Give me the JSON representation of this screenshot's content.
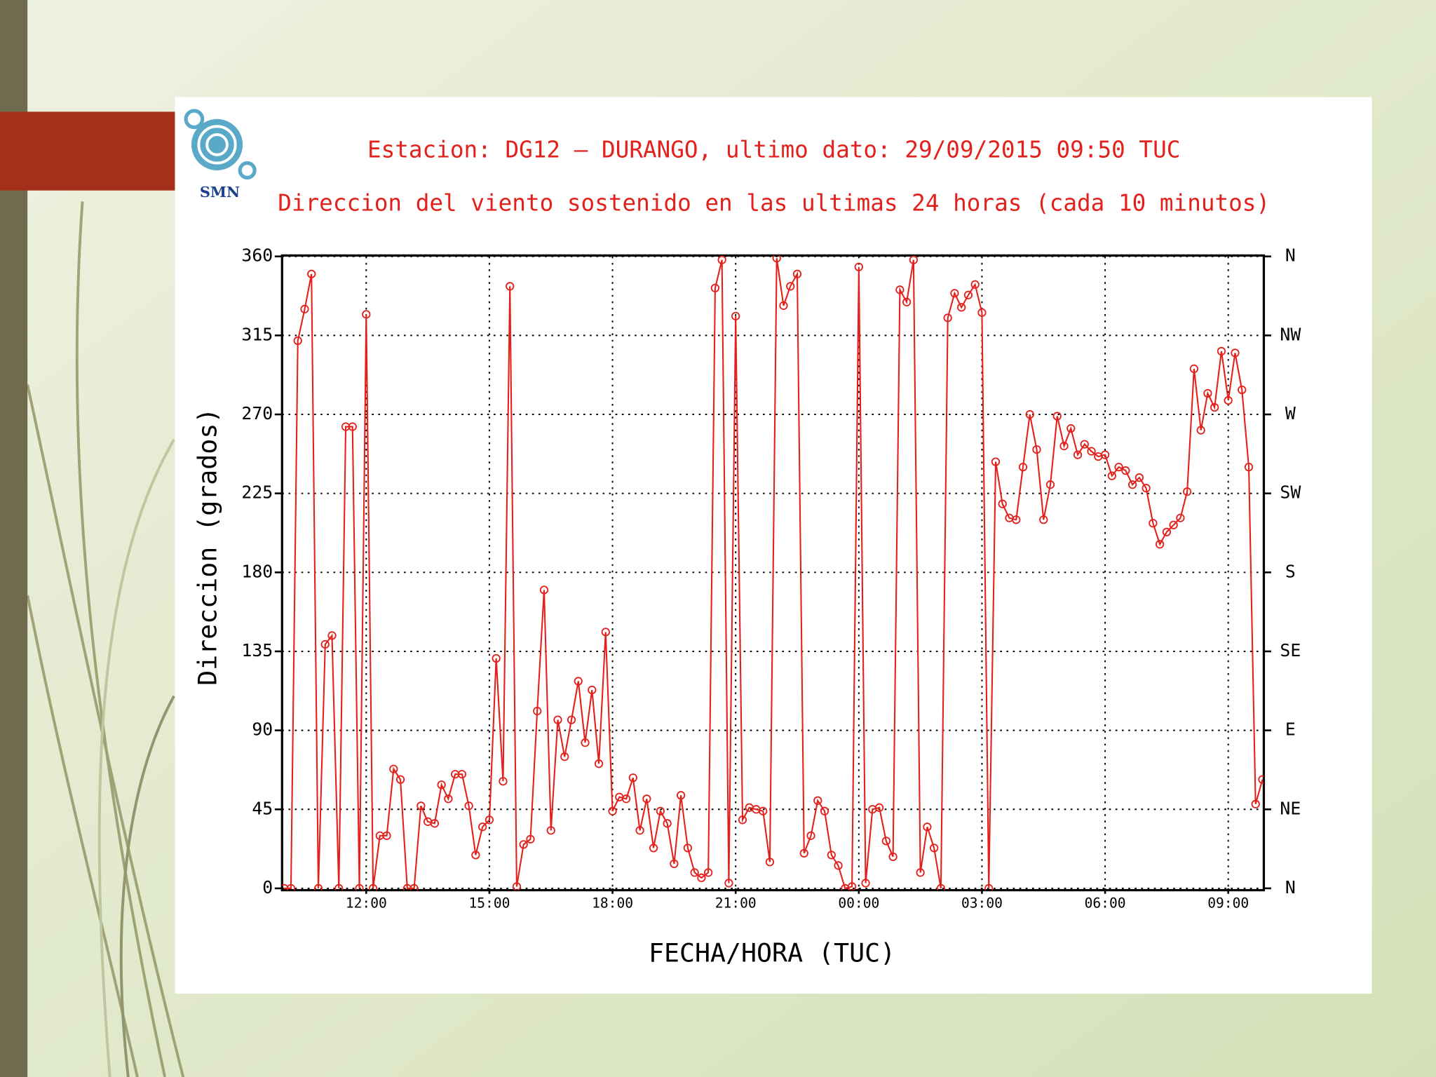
{
  "logo_text": "SMN",
  "chart_data": {
    "type": "line",
    "title": "Estacion: DG12 — DURANGO, ultimo dato: 29/09/2015 09:50 TUC",
    "subtitle": "Direccion del viento sostenido en las ultimas 24 horas (cada 10 minutos)",
    "x_label": "FECHA/HORA (TUC)",
    "y_label": "Direccion (grados)",
    "color": "#e3211c",
    "grid": true,
    "x": [
      600,
      610,
      620,
      630,
      640,
      650,
      660,
      670,
      680,
      690,
      700,
      710,
      720,
      730,
      740,
      750,
      760,
      770,
      780,
      790,
      800,
      810,
      820,
      830,
      840,
      850,
      860,
      870,
      880,
      890,
      900,
      910,
      920,
      930,
      940,
      950,
      960,
      970,
      980,
      990,
      1000,
      1010,
      1020,
      1030,
      1040,
      1050,
      1060,
      1070,
      1080,
      1090,
      1100,
      1110,
      1120,
      1130,
      1140,
      1150,
      1160,
      1170,
      1180,
      1190,
      1200,
      1210,
      1220,
      1230,
      1240,
      1250,
      1260,
      1270,
      1280,
      1290,
      1300,
      1310,
      1320,
      1330,
      1340,
      1350,
      1360,
      1370,
      1380,
      1390,
      1400,
      1410,
      1420,
      1430,
      1440,
      1450,
      1460,
      1470,
      1480,
      1490,
      1500,
      1510,
      1520,
      1530,
      1540,
      1550,
      1560,
      1570,
      1580,
      1590,
      1600,
      1610,
      1620,
      1630,
      1640,
      1650,
      1660,
      1670,
      1680,
      1690,
      1700,
      1710,
      1720,
      1730,
      1740,
      1750,
      1760,
      1770,
      1780,
      1790,
      1800,
      1810,
      1820,
      1830,
      1840,
      1850,
      1860,
      1870,
      1880,
      1890,
      1900,
      1910,
      1920,
      1930,
      1940,
      1950,
      1960,
      1970,
      1980,
      1990,
      2000,
      2010,
      2020,
      2030
    ],
    "values": [
      0,
      0,
      312,
      330,
      350,
      0,
      139,
      144,
      0,
      263,
      263,
      0,
      327,
      0,
      30,
      30,
      68,
      62,
      0,
      0,
      47,
      38,
      37,
      59,
      51,
      65,
      65,
      47,
      19,
      35,
      39,
      131,
      61,
      343,
      1,
      25,
      28,
      101,
      170,
      33,
      96,
      75,
      96,
      118,
      83,
      113,
      71,
      146,
      44,
      52,
      51,
      63,
      33,
      51,
      23,
      44,
      37,
      14,
      53,
      23,
      9,
      6,
      9,
      342,
      358,
      3,
      326,
      39,
      46,
      45,
      44,
      15,
      359,
      332,
      343,
      350,
      20,
      30,
      50,
      44,
      19,
      13,
      0,
      1,
      354,
      3,
      45,
      46,
      27,
      18,
      341,
      334,
      358,
      9,
      35,
      23,
      0,
      325,
      339,
      331,
      338,
      344,
      328,
      0,
      243,
      219,
      211,
      210,
      240,
      270,
      250,
      210,
      230,
      269,
      252,
      262,
      247,
      253,
      249,
      246,
      247,
      235,
      240,
      238,
      230,
      234,
      228,
      208,
      196,
      203,
      207,
      211,
      226,
      296,
      261,
      282,
      274,
      306,
      278,
      305,
      284,
      240,
      48,
      62
    ],
    "xlim": [
      597,
      2032
    ],
    "xticks": [
      {
        "value": 720,
        "label": "12:00"
      },
      {
        "value": 900,
        "label": "15:00"
      },
      {
        "value": 1080,
        "label": "18:00"
      },
      {
        "value": 1260,
        "label": "21:00"
      },
      {
        "value": 1440,
        "label": "00:00"
      },
      {
        "value": 1620,
        "label": "03:00"
      },
      {
        "value": 1800,
        "label": "06:00"
      },
      {
        "value": 1980,
        "label": "09:00"
      }
    ],
    "ylim": [
      0,
      360
    ],
    "yticks": [
      0,
      45,
      90,
      135,
      180,
      225,
      270,
      315,
      360
    ],
    "y2lim": [
      0,
      360
    ],
    "y2ticks": [
      {
        "value": 0,
        "label": "N"
      },
      {
        "value": 45,
        "label": "NE"
      },
      {
        "value": 90,
        "label": "E"
      },
      {
        "value": 135,
        "label": "SE"
      },
      {
        "value": 180,
        "label": "S"
      },
      {
        "value": 225,
        "label": "SW"
      },
      {
        "value": 270,
        "label": "W"
      },
      {
        "value": 315,
        "label": "NW"
      },
      {
        "value": 360,
        "label": "N"
      }
    ]
  }
}
